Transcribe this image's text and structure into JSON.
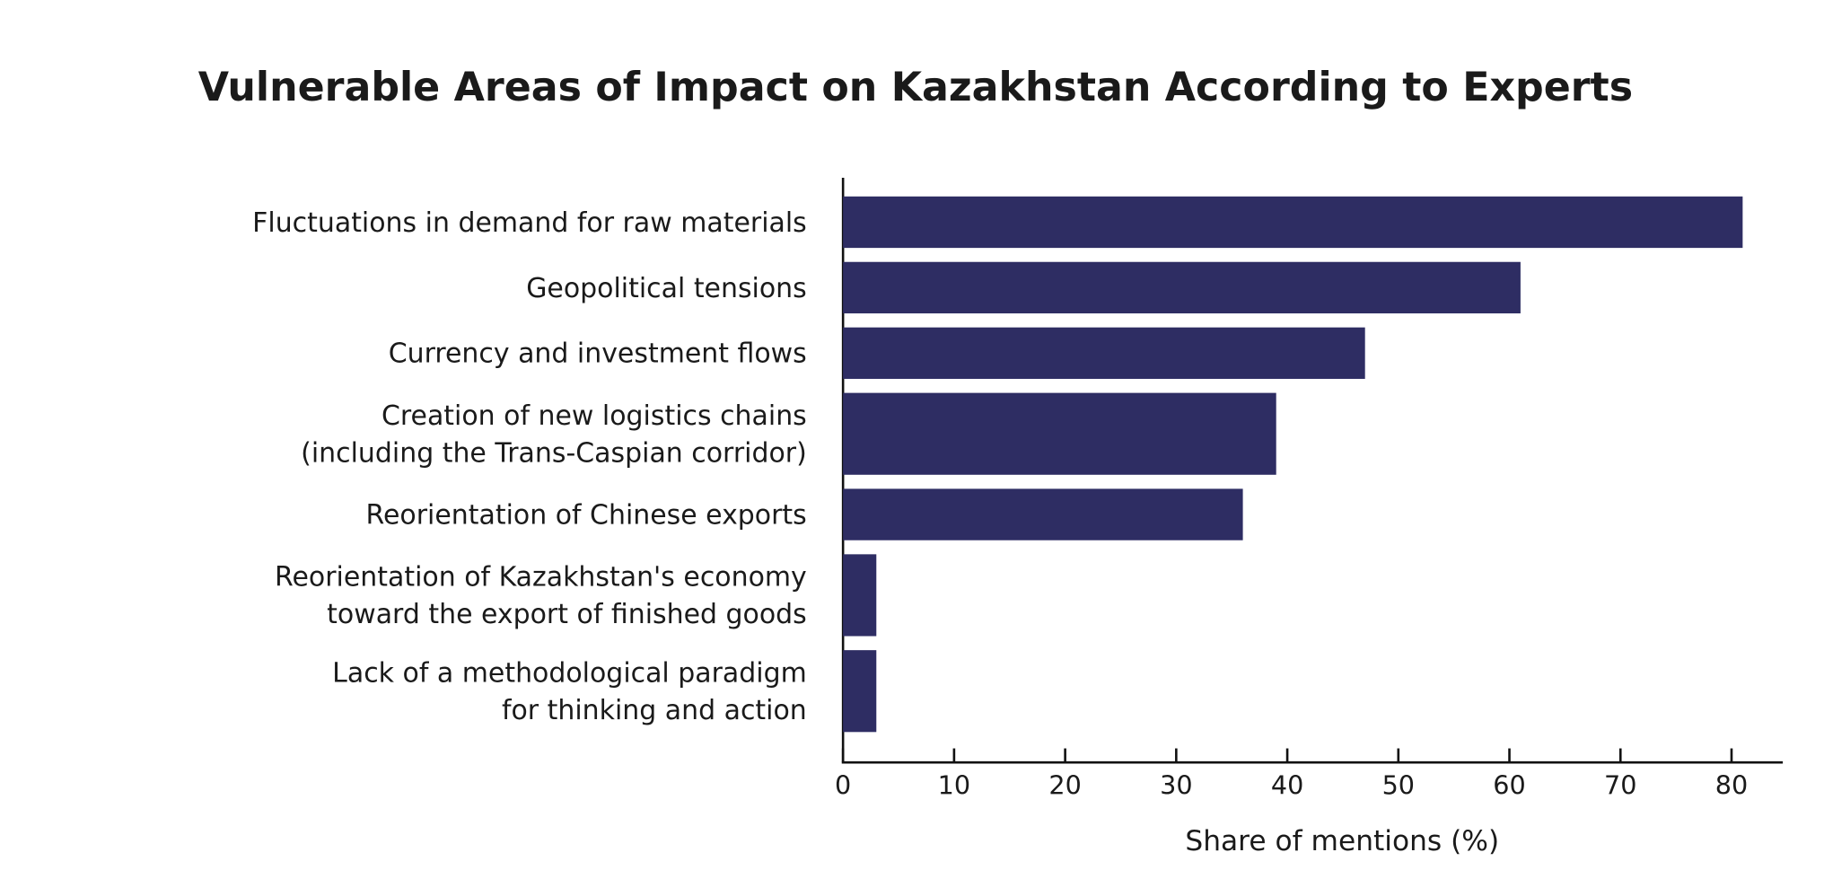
{
  "chart_data": {
    "type": "barh",
    "title": "Vulnerable Areas of Impact on Kazakhstan According to Experts",
    "categories": [
      "Fluctuations in demand for raw materials",
      "Geopolitical tensions",
      "Currency and investment flows",
      "Creation of new logistics chains\n(including the Trans-Caspian corridor)",
      "Reorientation of Chinese exports",
      "Reorientation of Kazakhstan's economy\ntoward the export of finished goods",
      "Lack of a methodological paradigm\nfor thinking and action"
    ],
    "values": [
      81,
      61,
      47,
      39,
      36,
      3,
      3
    ],
    "color": "#2e2d63",
    "xlabel": "Share of mentions (%)",
    "xlim": [
      0,
      82.3
    ],
    "xticks": [
      0,
      10,
      20,
      30,
      40,
      50,
      60,
      70,
      80
    ]
  }
}
